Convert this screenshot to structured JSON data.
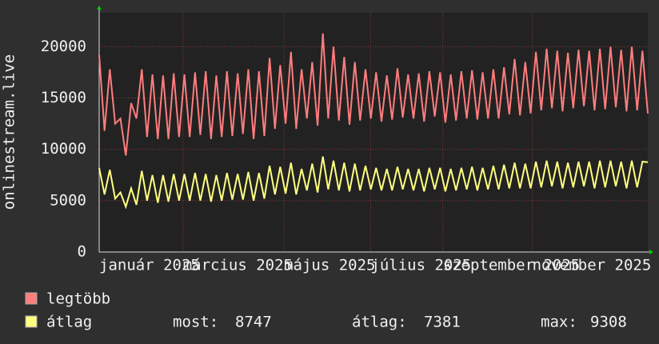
{
  "chart_data": {
    "type": "line",
    "y_label": "onlinestream.live",
    "ylim": [
      0,
      23300
    ],
    "yticks": [
      0,
      5000,
      10000,
      15000,
      20000
    ],
    "xlim": [
      0,
      380
    ],
    "xticks": [
      {
        "value": 0,
        "label": "január 2025"
      },
      {
        "value": 58,
        "label": "március 2025"
      },
      {
        "value": 128,
        "label": "május 2025"
      },
      {
        "value": 188,
        "label": "július 2025"
      },
      {
        "value": 238,
        "label": "szeptember 2025"
      },
      {
        "value": 300,
        "label": "november 2025"
      }
    ],
    "grid": true,
    "series": [
      {
        "name": "legtöbb",
        "color": "#ff7d7d",
        "values": [
          19200,
          11800,
          17800,
          12500,
          13000,
          9400,
          14500,
          13000,
          17800,
          11200,
          17300,
          11000,
          17200,
          11000,
          17400,
          11200,
          17300,
          11200,
          17500,
          11400,
          17600,
          11000,
          17200,
          11200,
          17600,
          11300,
          17400,
          11500,
          17800,
          11000,
          17600,
          11300,
          18900,
          12000,
          18200,
          12500,
          19500,
          12000,
          17800,
          13000,
          18500,
          12300,
          21300,
          13000,
          20000,
          12800,
          19000,
          12400,
          18500,
          12800,
          17800,
          13000,
          17500,
          12700,
          17200,
          12900,
          17900,
          13100,
          17300,
          13000,
          17400,
          12700,
          17600,
          13200,
          17500,
          12600,
          17300,
          12800,
          17600,
          13000,
          17700,
          12900,
          17500,
          13000,
          17800,
          13000,
          18000,
          13400,
          18800,
          13300,
          18500,
          13500,
          19500,
          13800,
          19800,
          14000,
          19600,
          13700,
          19400,
          14000,
          19700,
          14200,
          19600,
          13800,
          19800,
          13900,
          20000,
          14100,
          19700,
          13700,
          20000,
          13800,
          19600,
          13500
        ]
      },
      {
        "name": "átlag",
        "color": "#ffff80",
        "values": [
          8200,
          5600,
          8000,
          5200,
          5800,
          4400,
          6200,
          4600,
          7900,
          5000,
          7500,
          4800,
          7500,
          4900,
          7600,
          5000,
          7600,
          5000,
          7700,
          5000,
          7600,
          4900,
          7500,
          5000,
          7700,
          5100,
          7600,
          5100,
          7800,
          5000,
          7700,
          5200,
          8400,
          5600,
          8300,
          5700,
          8700,
          5600,
          8100,
          6000,
          8600,
          5800,
          9308,
          6100,
          8900,
          6000,
          8700,
          5900,
          8600,
          6000,
          8400,
          6100,
          8200,
          6000,
          8100,
          6000,
          8300,
          6100,
          8100,
          6000,
          8100,
          5900,
          8200,
          6100,
          8200,
          5900,
          8100,
          6000,
          8200,
          6100,
          8300,
          6000,
          8200,
          6100,
          8400,
          6100,
          8500,
          6200,
          8700,
          6200,
          8600,
          6200,
          8800,
          6300,
          8900,
          6400,
          8800,
          6200,
          8700,
          6300,
          8800,
          6400,
          8800,
          6200,
          8900,
          6300,
          8900,
          6400,
          8800,
          6200,
          8900,
          6300,
          8800,
          8747
        ]
      }
    ],
    "stats": [
      {
        "label": "most:",
        "value": 8747
      },
      {
        "label": "átlag:",
        "value": 7381
      },
      {
        "label": "max:",
        "value": 9308
      }
    ]
  }
}
